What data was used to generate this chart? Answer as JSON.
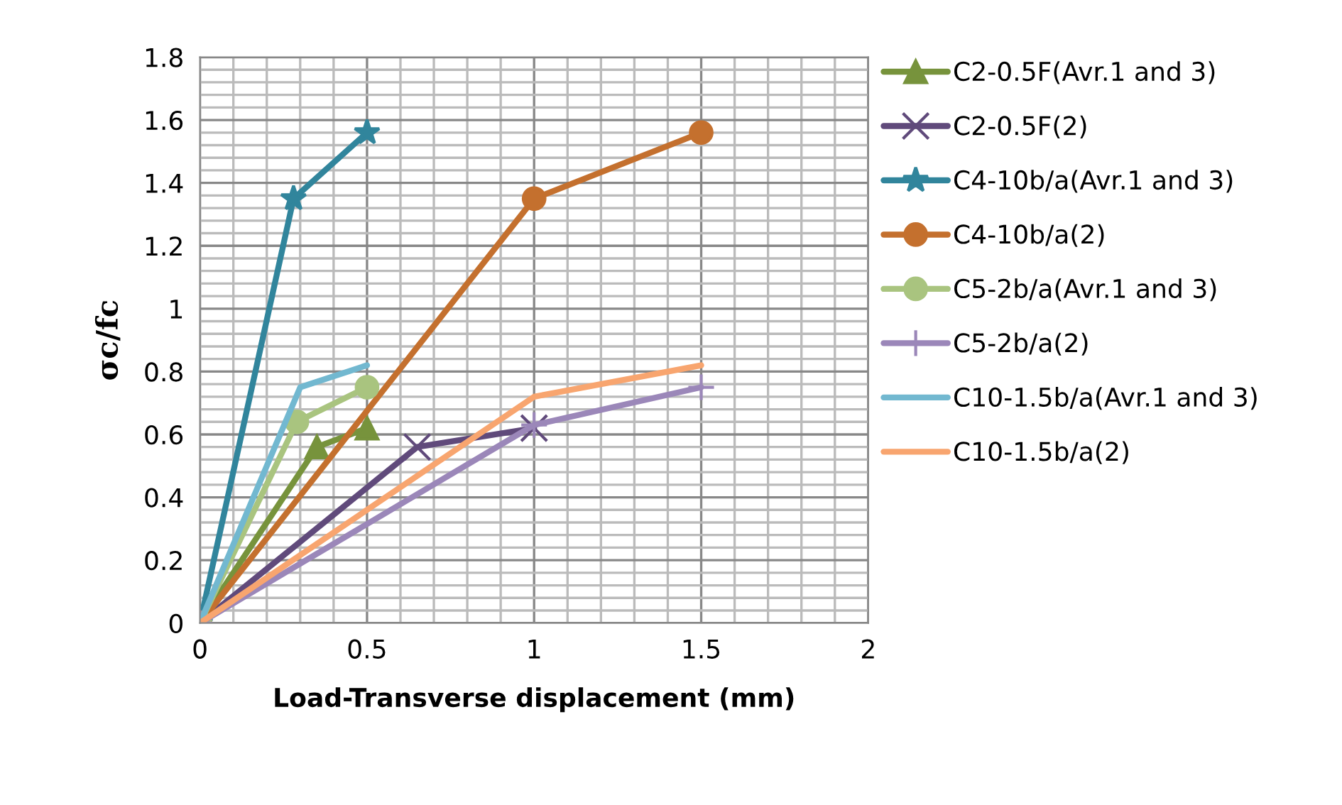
{
  "chart_data": {
    "type": "line",
    "xlabel": "Load-Transverse displacement (mm)",
    "ylabel": "σc/fc",
    "xlim": [
      0,
      2
    ],
    "xticks": [
      0,
      0.5,
      1,
      1.5,
      2
    ],
    "ylim": [
      0,
      1.8
    ],
    "yticks": [
      0,
      0.2,
      0.4,
      0.6,
      0.8,
      1,
      1.2,
      1.4,
      1.6,
      1.8
    ],
    "grid": true,
    "legend": "right",
    "series": [
      {
        "name": "C2-0.5F(Avr.1 and 3)",
        "color": "#77933c",
        "marker": "triangle",
        "x": [
          0,
          0.35,
          0.5
        ],
        "values": [
          0,
          0.56,
          0.62
        ]
      },
      {
        "name": "C2-0.5F(2)",
        "color": "#604a7b",
        "marker": "cross",
        "x": [
          0,
          0.65,
          1.0
        ],
        "values": [
          0,
          0.56,
          0.62
        ]
      },
      {
        "name": "C4-10b/a(Avr.1 and 3)",
        "color": "#31859c",
        "marker": "star",
        "x": [
          0,
          0.28,
          0.5
        ],
        "values": [
          0,
          1.35,
          1.56
        ]
      },
      {
        "name": "C4-10b/a(2)",
        "color": "#c4702e",
        "marker": "circle",
        "x": [
          0,
          1.0,
          1.5
        ],
        "values": [
          0,
          1.35,
          1.56
        ]
      },
      {
        "name": "C5-2b/a(Avr.1 and 3)",
        "color": "#a9c47f",
        "marker": "circle",
        "x": [
          0,
          0.29,
          0.5
        ],
        "values": [
          0,
          0.64,
          0.75
        ]
      },
      {
        "name": "C5-2b/a(2)",
        "color": "#9b87b9",
        "marker": "plus",
        "x": [
          0,
          1.0,
          1.5
        ],
        "values": [
          0,
          0.63,
          0.75
        ]
      },
      {
        "name": "C10-1.5b/a(Avr.1 and 3)",
        "color": "#72b8d0",
        "marker": "none",
        "x": [
          0,
          0.3,
          0.5
        ],
        "values": [
          0,
          0.75,
          0.82
        ]
      },
      {
        "name": "C10-1.5b/a(2)",
        "color": "#f8a56f",
        "marker": "none",
        "x": [
          0,
          1.0,
          1.5
        ],
        "values": [
          0,
          0.72,
          0.82
        ]
      }
    ]
  }
}
